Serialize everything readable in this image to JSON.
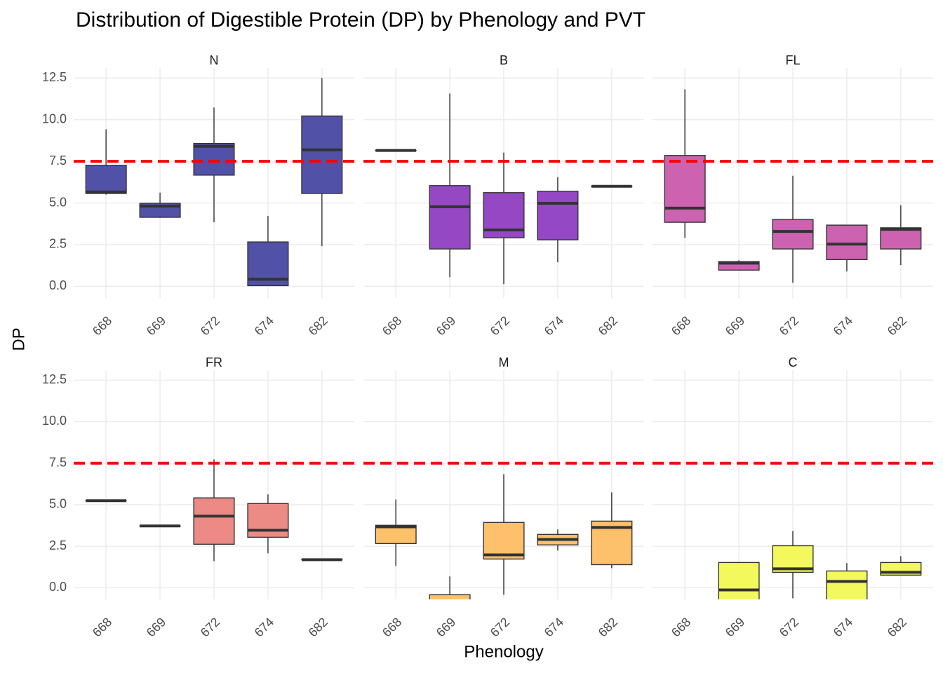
{
  "title": "Distribution of Digestible Protein (DP) by Phenology and PVT",
  "x_label": "Phenology",
  "y_label": "DP",
  "ylim": [
    -0.7,
    13.1
  ],
  "yticks": [
    {
      "value": 0,
      "label": "0.0"
    },
    2.5,
    {
      "value": 5,
      "label": "5.0"
    },
    7.5,
    {
      "value": 10,
      "label": "10.0"
    },
    12.5
  ],
  "reference_line": {
    "value": 7.5,
    "color": "#ff0000",
    "style": "dashed"
  },
  "grid": true,
  "chart_data": [
    {
      "type": "box",
      "title": "N",
      "color": "#5251a8",
      "categories": [
        "668",
        "669",
        "672",
        "674",
        "682"
      ],
      "min": [
        5.5,
        4.1,
        3.84,
        0.04,
        2.41
      ],
      "q1": [
        5.57,
        4.14,
        6.67,
        0.04,
        5.57
      ],
      "median": [
        5.66,
        4.81,
        8.4,
        0.42,
        8.19
      ],
      "q3": [
        7.26,
        4.98,
        8.57,
        2.66,
        10.22
      ],
      "max": [
        9.42,
        5.62,
        10.73,
        4.22,
        12.5
      ]
    },
    {
      "type": "box",
      "title": "B",
      "color": "#9448c4",
      "categories": [
        "668",
        "669",
        "672",
        "674",
        "682"
      ],
      "min": [
        8.15,
        0.55,
        0.13,
        1.44,
        6.0
      ],
      "q1": [
        8.15,
        2.24,
        2.91,
        2.79,
        6.0
      ],
      "median": [
        8.15,
        4.77,
        3.38,
        4.98,
        6.0
      ],
      "q3": [
        8.15,
        6.04,
        5.62,
        5.7,
        6.0
      ],
      "max": [
        8.15,
        11.57,
        8.02,
        6.55,
        6.0
      ]
    },
    {
      "type": "box",
      "title": "FL",
      "color": "#cc62b0",
      "categories": [
        "668",
        "669",
        "672",
        "674",
        "682"
      ],
      "min": [
        2.91,
        0.97,
        0.21,
        0.89,
        1.27
      ],
      "q1": [
        3.84,
        0.97,
        2.24,
        1.6,
        2.24
      ],
      "median": [
        4.69,
        1.39,
        3.29,
        2.53,
        3.42
      ],
      "q3": [
        7.85,
        1.48,
        4.01,
        3.67,
        3.51
      ],
      "max": [
        11.82,
        1.56,
        6.63,
        3.67,
        4.86
      ]
    },
    {
      "type": "box",
      "title": "FR",
      "color": "#ec8b86",
      "categories": [
        "668",
        "669",
        "672",
        "674",
        "682"
      ],
      "min": [
        5.24,
        3.72,
        1.6,
        2.07,
        1.69
      ],
      "q1": [
        5.24,
        3.72,
        2.62,
        3.04,
        1.69
      ],
      "median": [
        5.24,
        3.72,
        4.31,
        3.46,
        1.69
      ],
      "q3": [
        5.24,
        3.72,
        5.41,
        5.07,
        1.69
      ],
      "max": [
        5.24,
        3.72,
        7.73,
        5.62,
        1.69
      ]
    },
    {
      "type": "box",
      "title": "M",
      "color": "#fdc06b",
      "categories": [
        "668",
        "669",
        "672",
        "674",
        "682"
      ],
      "min": [
        1.31,
        -1.5,
        -0.42,
        2.24,
        1.18
      ],
      "q1": [
        2.66,
        -1.2,
        1.73,
        2.58,
        1.39
      ],
      "median": [
        3.67,
        -0.8,
        1.98,
        2.91,
        3.63
      ],
      "q3": [
        3.76,
        -0.42,
        3.93,
        3.21,
        4.01
      ],
      "max": [
        5.32,
        0.68,
        6.84,
        3.51,
        5.74
      ]
    },
    {
      "type": "box",
      "title": "C",
      "color": "#f3f95c",
      "categories": [
        "668",
        "669",
        "672",
        "674",
        "682"
      ],
      "min": [
        null,
        -1.2,
        -0.63,
        -1.0,
        0.76
      ],
      "q1": [
        null,
        -1.0,
        0.93,
        -0.8,
        0.76
      ],
      "median": [
        null,
        -0.13,
        1.14,
        0.38,
        0.93
      ],
      "q3": [
        null,
        1.52,
        2.53,
        1.01,
        1.52
      ],
      "max": [
        null,
        1.52,
        3.42,
        1.48,
        1.9
      ]
    }
  ]
}
